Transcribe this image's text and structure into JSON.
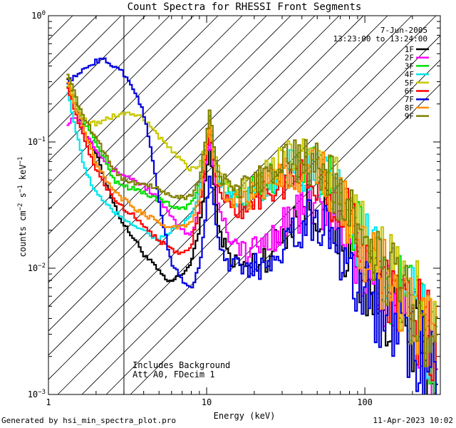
{
  "chart_data": {
    "type": "line",
    "title": "Count Spectra for RHESSI Front Segments",
    "xlabel": "Energy (keV)",
    "ylabel": {
      "base": "counts cm",
      "sup1": "−2",
      "mid": " s",
      "sup2": "−1",
      "mid2": " keV",
      "sup3": "−1"
    },
    "xscale": "log",
    "yscale": "log",
    "xlim": [
      1,
      300
    ],
    "ylim": [
      0.001,
      1
    ],
    "x_ticks": [
      {
        "value": 1,
        "label": "1"
      },
      {
        "value": 10,
        "label": "10"
      },
      {
        "value": 100,
        "label": "100"
      }
    ],
    "y_ticks": [
      {
        "value": 0.001,
        "base": "10",
        "exp": "−3"
      },
      {
        "value": 0.01,
        "base": "10",
        "exp": "−2"
      },
      {
        "value": 0.1,
        "base": "10",
        "exp": "−1"
      },
      {
        "value": 1,
        "base": "10",
        "exp": "0"
      }
    ],
    "hatched_region_max_kev": 3,
    "date": "7-Jun-2005",
    "time_range": "13:23:00 to 13:24:00",
    "annotations": [
      "Includes Background",
      "Att A0, FDecim 1"
    ],
    "series": [
      {
        "name": "1F",
        "color": "#000000",
        "x": [
          1.3,
          1.5,
          1.7,
          2.0,
          2.3,
          2.6,
          3.0,
          3.5,
          4.0,
          4.5,
          5.0,
          5.5,
          6.0,
          7.0,
          8.0,
          9.0,
          10.0,
          10.5,
          11.0,
          12.0,
          14.0,
          16.0,
          18.0,
          20.0,
          25.0,
          30.0,
          35.0,
          40.0,
          45.0,
          50.0,
          55.0,
          60.0,
          70.0,
          80.0,
          100.0,
          120.0,
          150.0,
          200.0,
          250.0,
          290.0
        ],
        "y": [
          0.35,
          0.2,
          0.12,
          0.08,
          0.05,
          0.032,
          0.022,
          0.017,
          0.013,
          0.011,
          0.0095,
          0.008,
          0.0078,
          0.009,
          0.011,
          0.02,
          0.06,
          0.09,
          0.05,
          0.02,
          0.012,
          0.011,
          0.01,
          0.011,
          0.013,
          0.018,
          0.025,
          0.03,
          0.032,
          0.03,
          0.028,
          0.025,
          0.018,
          0.012,
          0.008,
          0.006,
          0.0045,
          0.003,
          0.0022,
          0.0016
        ]
      },
      {
        "name": "2F",
        "color": "#ff00ff",
        "x": [
          1.3,
          1.5,
          1.7,
          2.0,
          2.3,
          2.6,
          3.0,
          3.5,
          4.0,
          4.5,
          5.0,
          5.5,
          6.0,
          7.0,
          8.0,
          9.0,
          10.0,
          10.5,
          11.0,
          12.0,
          14.0,
          16.0,
          18.0,
          20.0,
          25.0,
          30.0,
          35.0,
          40.0,
          45.0,
          50.0,
          55.0,
          60.0,
          70.0,
          80.0,
          100.0,
          120.0,
          150.0,
          200.0,
          250.0,
          290.0
        ],
        "y": [
          0.14,
          0.16,
          0.12,
          0.09,
          0.07,
          0.06,
          0.055,
          0.05,
          0.045,
          0.04,
          0.035,
          0.03,
          0.025,
          0.02,
          0.018,
          0.03,
          0.08,
          0.12,
          0.07,
          0.03,
          0.018,
          0.015,
          0.013,
          0.014,
          0.017,
          0.022,
          0.026,
          0.03,
          0.032,
          0.03,
          0.028,
          0.026,
          0.02,
          0.015,
          0.01,
          0.0075,
          0.0055,
          0.0035,
          0.0026,
          0.0019
        ]
      },
      {
        "name": "3F",
        "color": "#00e000",
        "x": [
          1.3,
          1.5,
          1.7,
          2.0,
          2.3,
          2.6,
          3.0,
          3.5,
          4.0,
          4.5,
          5.0,
          5.5,
          6.0,
          7.0,
          8.0,
          9.0,
          10.0,
          10.5,
          11.0,
          12.0,
          14.0,
          16.0,
          18.0,
          20.0,
          25.0,
          30.0,
          35.0,
          40.0,
          45.0,
          50.0,
          55.0,
          60.0,
          70.0,
          80.0,
          100.0,
          120.0,
          150.0,
          200.0,
          250.0,
          290.0
        ],
        "y": [
          0.3,
          0.2,
          0.14,
          0.1,
          0.07,
          0.05,
          0.045,
          0.042,
          0.04,
          0.037,
          0.035,
          0.033,
          0.031,
          0.03,
          0.032,
          0.045,
          0.11,
          0.17,
          0.09,
          0.05,
          0.04,
          0.037,
          0.038,
          0.042,
          0.05,
          0.055,
          0.06,
          0.063,
          0.06,
          0.057,
          0.053,
          0.048,
          0.035,
          0.025,
          0.015,
          0.01,
          0.007,
          0.0045,
          0.003,
          0.0022
        ]
      },
      {
        "name": "4F",
        "color": "#00e5ee",
        "x": [
          1.3,
          1.5,
          1.7,
          2.0,
          2.3,
          2.6,
          3.0,
          3.5,
          4.0,
          4.5,
          5.0,
          5.5,
          6.0,
          7.0,
          8.0,
          9.0,
          10.0,
          10.5,
          11.0,
          12.0,
          14.0,
          16.0,
          18.0,
          20.0,
          25.0,
          30.0,
          35.0,
          40.0,
          45.0,
          50.0,
          55.0,
          60.0,
          70.0,
          80.0,
          100.0,
          120.0,
          150.0,
          200.0,
          250.0,
          290.0
        ],
        "y": [
          0.28,
          0.12,
          0.06,
          0.04,
          0.032,
          0.028,
          0.025,
          0.022,
          0.02,
          0.018,
          0.017,
          0.018,
          0.02,
          0.022,
          0.025,
          0.04,
          0.1,
          0.16,
          0.08,
          0.045,
          0.035,
          0.033,
          0.035,
          0.04,
          0.048,
          0.055,
          0.06,
          0.062,
          0.058,
          0.055,
          0.05,
          0.045,
          0.033,
          0.024,
          0.015,
          0.01,
          0.007,
          0.0045,
          0.003,
          0.0022
        ]
      },
      {
        "name": "5F",
        "color": "#c8c800",
        "x": [
          1.3,
          1.5,
          1.7,
          2.0,
          2.3,
          2.6,
          3.0,
          3.5,
          4.0,
          4.5,
          5.0,
          5.5,
          6.0,
          7.0,
          8.0,
          9.0,
          10.0,
          10.5,
          11.0,
          12.0,
          14.0,
          16.0,
          18.0,
          20.0,
          25.0,
          30.0,
          35.0,
          40.0,
          45.0,
          50.0,
          55.0,
          60.0,
          70.0,
          80.0,
          100.0,
          120.0,
          150.0,
          200.0,
          250.0,
          290.0
        ],
        "y": [
          0.36,
          0.2,
          0.15,
          0.14,
          0.15,
          0.16,
          0.17,
          0.165,
          0.15,
          0.13,
          0.11,
          0.095,
          0.085,
          0.07,
          0.06,
          0.065,
          0.11,
          0.15,
          0.1,
          0.06,
          0.048,
          0.045,
          0.046,
          0.05,
          0.06,
          0.068,
          0.074,
          0.077,
          0.072,
          0.066,
          0.06,
          0.052,
          0.04,
          0.03,
          0.019,
          0.013,
          0.009,
          0.0055,
          0.0038,
          0.0027
        ]
      },
      {
        "name": "6F",
        "color": "#ff0000",
        "x": [
          1.3,
          1.5,
          1.7,
          2.0,
          2.3,
          2.6,
          3.0,
          3.5,
          4.0,
          4.5,
          5.0,
          5.5,
          6.0,
          7.0,
          8.0,
          9.0,
          10.0,
          10.5,
          11.0,
          12.0,
          14.0,
          16.0,
          18.0,
          20.0,
          25.0,
          30.0,
          35.0,
          40.0,
          45.0,
          50.0,
          55.0,
          60.0,
          70.0,
          80.0,
          100.0,
          120.0,
          150.0,
          200.0,
          250.0,
          290.0
        ],
        "y": [
          0.3,
          0.16,
          0.1,
          0.06,
          0.045,
          0.035,
          0.03,
          0.026,
          0.022,
          0.019,
          0.017,
          0.015,
          0.014,
          0.013,
          0.015,
          0.03,
          0.09,
          0.14,
          0.075,
          0.04,
          0.032,
          0.03,
          0.031,
          0.035,
          0.042,
          0.048,
          0.052,
          0.055,
          0.053,
          0.05,
          0.046,
          0.042,
          0.031,
          0.023,
          0.014,
          0.0095,
          0.0065,
          0.0042,
          0.0029,
          0.0021
        ]
      },
      {
        "name": "7F",
        "color": "#0000dd",
        "x": [
          1.3,
          1.5,
          1.7,
          2.0,
          2.3,
          2.6,
          3.0,
          3.5,
          4.0,
          4.5,
          5.0,
          5.5,
          6.0,
          7.0,
          8.0,
          9.0,
          10.0,
          10.5,
          11.0,
          12.0,
          14.0,
          16.0,
          18.0,
          20.0,
          25.0,
          30.0,
          35.0,
          40.0,
          45.0,
          50.0,
          55.0,
          60.0,
          70.0,
          80.0,
          100.0,
          120.0,
          150.0,
          200.0,
          250.0,
          290.0
        ],
        "y": [
          0.3,
          0.33,
          0.38,
          0.44,
          0.44,
          0.4,
          0.35,
          0.26,
          0.17,
          0.08,
          0.035,
          0.018,
          0.011,
          0.008,
          0.007,
          0.01,
          0.03,
          0.06,
          0.035,
          0.015,
          0.011,
          0.01,
          0.0095,
          0.01,
          0.012,
          0.015,
          0.019,
          0.022,
          0.024,
          0.023,
          0.021,
          0.019,
          0.014,
          0.01,
          0.0068,
          0.0048,
          0.0035,
          0.0024,
          0.0017,
          0.0013
        ]
      },
      {
        "name": "8F",
        "color": "#ff8c00",
        "x": [
          1.3,
          1.5,
          1.7,
          2.0,
          2.3,
          2.6,
          3.0,
          3.5,
          4.0,
          4.5,
          5.0,
          5.5,
          6.0,
          7.0,
          8.0,
          9.0,
          10.0,
          10.5,
          11.0,
          12.0,
          14.0,
          16.0,
          18.0,
          20.0,
          25.0,
          30.0,
          35.0,
          40.0,
          45.0,
          50.0,
          55.0,
          60.0,
          70.0,
          80.0,
          100.0,
          120.0,
          150.0,
          200.0,
          250.0,
          290.0
        ],
        "y": [
          0.33,
          0.18,
          0.12,
          0.07,
          0.05,
          0.04,
          0.035,
          0.03,
          0.027,
          0.025,
          0.023,
          0.022,
          0.021,
          0.021,
          0.023,
          0.035,
          0.1,
          0.15,
          0.08,
          0.045,
          0.036,
          0.034,
          0.036,
          0.04,
          0.048,
          0.055,
          0.059,
          0.062,
          0.059,
          0.055,
          0.05,
          0.045,
          0.034,
          0.025,
          0.015,
          0.01,
          0.007,
          0.0045,
          0.003,
          0.0022
        ]
      },
      {
        "name": "9F",
        "color": "#808000",
        "x": [
          1.3,
          1.5,
          1.7,
          2.0,
          2.3,
          2.6,
          3.0,
          3.5,
          4.0,
          4.5,
          5.0,
          5.5,
          6.0,
          7.0,
          8.0,
          9.0,
          10.0,
          10.5,
          11.0,
          12.0,
          14.0,
          16.0,
          18.0,
          20.0,
          25.0,
          30.0,
          35.0,
          40.0,
          45.0,
          50.0,
          55.0,
          60.0,
          70.0,
          80.0,
          100.0,
          120.0,
          150.0,
          200.0,
          250.0,
          290.0
        ],
        "y": [
          0.38,
          0.22,
          0.15,
          0.11,
          0.08,
          0.06,
          0.05,
          0.048,
          0.046,
          0.044,
          0.042,
          0.04,
          0.038,
          0.036,
          0.037,
          0.05,
          0.12,
          0.18,
          0.1,
          0.055,
          0.044,
          0.042,
          0.044,
          0.048,
          0.058,
          0.065,
          0.07,
          0.072,
          0.068,
          0.063,
          0.058,
          0.052,
          0.039,
          0.029,
          0.018,
          0.012,
          0.0085,
          0.0053,
          0.0036,
          0.0026
        ]
      }
    ]
  },
  "footer": {
    "left": "Generated by hsi_min_spectra_plot.pro",
    "right": "11-Apr-2023 10:02"
  }
}
